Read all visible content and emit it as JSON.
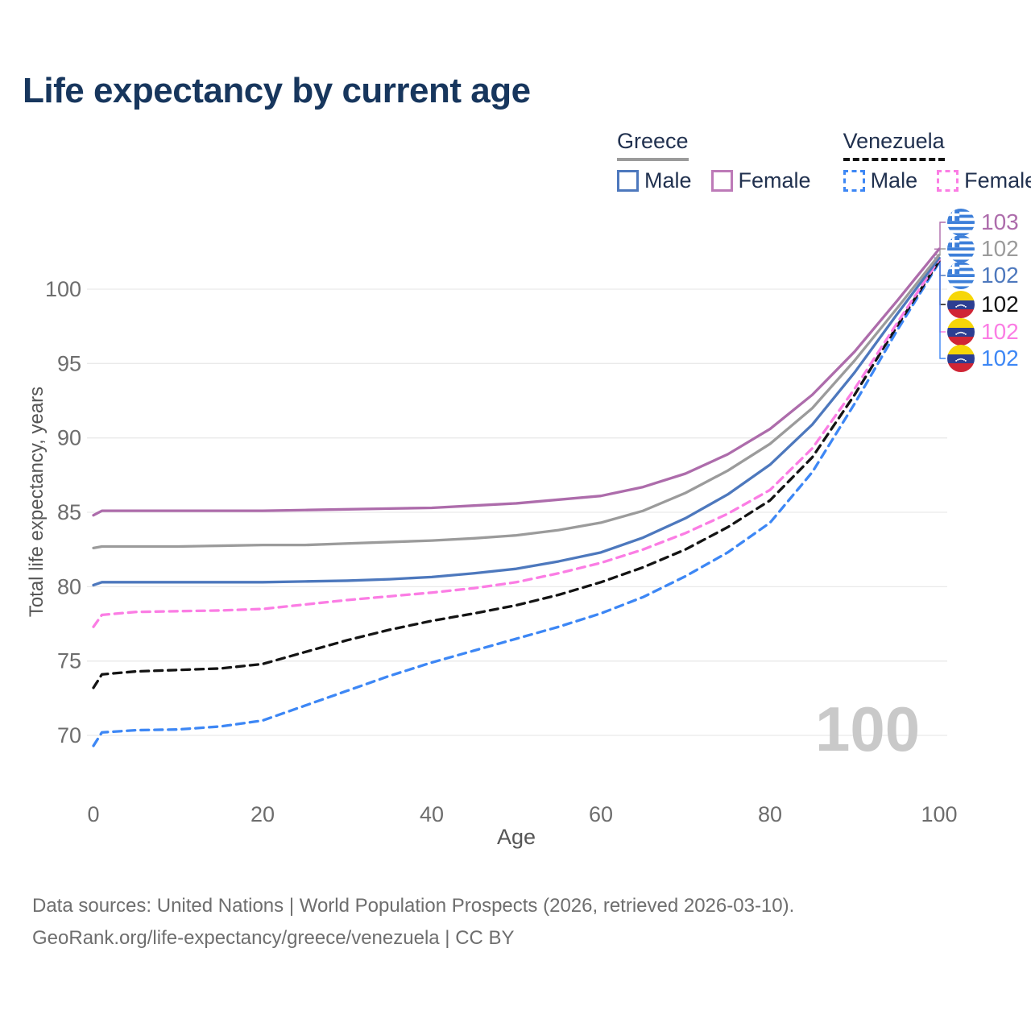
{
  "title": "Life expectancy by current age",
  "watermark": "100",
  "legend": {
    "groups": [
      {
        "label": "Greece",
        "underline": "solid",
        "underline_color": "#9b9b9b",
        "items": [
          {
            "label": "Male",
            "color": "#4d78bd",
            "dashed": false
          },
          {
            "label": "Female",
            "color": "#bd7ab8",
            "dashed": false
          }
        ]
      },
      {
        "label": "Venezuela",
        "underline": "dashed",
        "underline_color": "#141414",
        "items": [
          {
            "label": "Male",
            "color": "#3d87f5",
            "dashed": true
          },
          {
            "label": "Female",
            "color": "#fb7de4",
            "dashed": true
          }
        ]
      }
    ]
  },
  "chart_data": {
    "type": "line",
    "title": "Life expectancy by current age",
    "xlabel": "Age",
    "ylabel": "Total life expectancy, years",
    "x_ticks": [
      0,
      20,
      40,
      60,
      80,
      100
    ],
    "y_ticks": [
      70,
      75,
      80,
      85,
      90,
      95,
      100
    ],
    "xlim": [
      0,
      100
    ],
    "ylim": [
      68.5,
      104
    ],
    "grid": "horizontal",
    "legend_position": "top-right",
    "x": [
      0,
      1,
      5,
      10,
      15,
      20,
      25,
      30,
      35,
      40,
      45,
      50,
      55,
      60,
      65,
      70,
      75,
      80,
      85,
      90,
      95,
      100
    ],
    "series": [
      {
        "id": "greece_female",
        "name": "Greece Female",
        "color": "#ad6cab",
        "dashed": false,
        "values": [
          84.8,
          85.1,
          85.1,
          85.1,
          85.1,
          85.1,
          85.15,
          85.2,
          85.25,
          85.3,
          85.45,
          85.6,
          85.85,
          86.1,
          86.7,
          87.6,
          88.9,
          90.6,
          92.9,
          95.8,
          99.2,
          102.7
        ]
      },
      {
        "id": "greece_all",
        "name": "Greece Both sexes",
        "color": "#9b9b9b",
        "dashed": false,
        "values": [
          82.6,
          82.7,
          82.7,
          82.7,
          82.75,
          82.8,
          82.8,
          82.9,
          83.0,
          83.1,
          83.25,
          83.45,
          83.8,
          84.3,
          85.1,
          86.3,
          87.8,
          89.6,
          92.0,
          95.2,
          98.7,
          102.3
        ]
      },
      {
        "id": "greece_male",
        "name": "Greece Male",
        "color": "#4d78bd",
        "dashed": false,
        "values": [
          80.1,
          80.3,
          80.3,
          80.3,
          80.3,
          80.3,
          80.35,
          80.4,
          80.5,
          80.65,
          80.9,
          81.2,
          81.7,
          82.3,
          83.3,
          84.6,
          86.2,
          88.2,
          90.9,
          94.4,
          98.3,
          102.1
        ]
      },
      {
        "id": "venezuela_female",
        "name": "Venezuela Female",
        "color": "#fb7de4",
        "dashed": true,
        "values": [
          77.3,
          78.1,
          78.3,
          78.35,
          78.4,
          78.5,
          78.8,
          79.1,
          79.35,
          79.6,
          79.9,
          80.3,
          80.9,
          81.6,
          82.5,
          83.6,
          84.9,
          86.5,
          89.3,
          93.3,
          97.7,
          102.0
        ]
      },
      {
        "id": "venezuela_all",
        "name": "Venezuela Both sexes",
        "color": "#141414",
        "dashed": true,
        "values": [
          73.2,
          74.1,
          74.3,
          74.4,
          74.5,
          74.8,
          75.6,
          76.4,
          77.1,
          77.7,
          78.2,
          78.75,
          79.45,
          80.3,
          81.3,
          82.5,
          84.0,
          85.8,
          88.7,
          92.9,
          97.5,
          101.9
        ]
      },
      {
        "id": "venezuela_male",
        "name": "Venezuela Male",
        "color": "#3d87f5",
        "dashed": true,
        "values": [
          69.3,
          70.2,
          70.35,
          70.4,
          70.6,
          71.0,
          72.0,
          73.0,
          74.0,
          74.9,
          75.7,
          76.5,
          77.3,
          78.2,
          79.3,
          80.7,
          82.3,
          84.3,
          87.7,
          92.3,
          97.2,
          101.8
        ]
      }
    ]
  },
  "end_labels": [
    {
      "series": "greece_female",
      "country": "Greece",
      "value": "103",
      "color": "#ad6cab"
    },
    {
      "series": "greece_all",
      "country": "Greece",
      "value": "102",
      "color": "#9b9b9b"
    },
    {
      "series": "greece_male",
      "country": "Greece",
      "value": "102",
      "color": "#4d78bd"
    },
    {
      "series": "venezuela_all",
      "country": "Venezuela",
      "value": "102",
      "color": "#141414"
    },
    {
      "series": "venezuela_female",
      "country": "Venezuela",
      "value": "102",
      "color": "#fb7de4"
    },
    {
      "series": "venezuela_male",
      "country": "Venezuela",
      "value": "102",
      "color": "#3d87f5"
    }
  ],
  "footer": {
    "line1": "Data sources: United Nations | World Population Prospects (2026, retrieved 2026-03-10).",
    "line2": "GeoRank.org/life-expectancy/greece/venezuela | CC BY"
  }
}
